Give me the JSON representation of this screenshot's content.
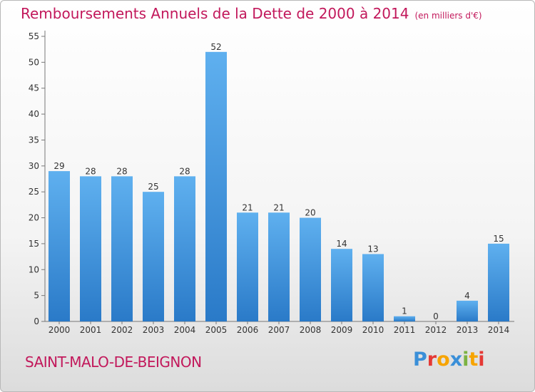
{
  "title": "Remboursements Annuels de la Dette de 2000 à 2014",
  "unit_note": "(en milliers d'€)",
  "commune": "SAINT-MALO-DE-BEIGNON",
  "logo": {
    "text": "Proxiti",
    "letters": [
      "P",
      "r",
      "o",
      "x",
      "i",
      "t",
      "i"
    ],
    "colors": [
      "#3a8fd8",
      "#e53935",
      "#f7a400",
      "#3a8fd8",
      "#7cb342",
      "#f7a400",
      "#e53935"
    ]
  },
  "colors": {
    "accent": "#c2185b",
    "bar_top": "#5fb0ef",
    "bar_bottom": "#2a7ac8"
  },
  "chart_data": {
    "type": "bar",
    "categories": [
      "2000",
      "2001",
      "2002",
      "2003",
      "2004",
      "2005",
      "2006",
      "2007",
      "2008",
      "2009",
      "2010",
      "2011",
      "2012",
      "2013",
      "2014"
    ],
    "values": [
      29,
      28,
      28,
      25,
      28,
      52,
      21,
      21,
      20,
      14,
      13,
      1,
      0,
      4,
      15
    ],
    "ylim": [
      0,
      55
    ],
    "yticks": [
      0,
      5,
      10,
      15,
      20,
      25,
      30,
      35,
      40,
      45,
      50,
      55
    ],
    "grid": false,
    "legend": "none"
  }
}
